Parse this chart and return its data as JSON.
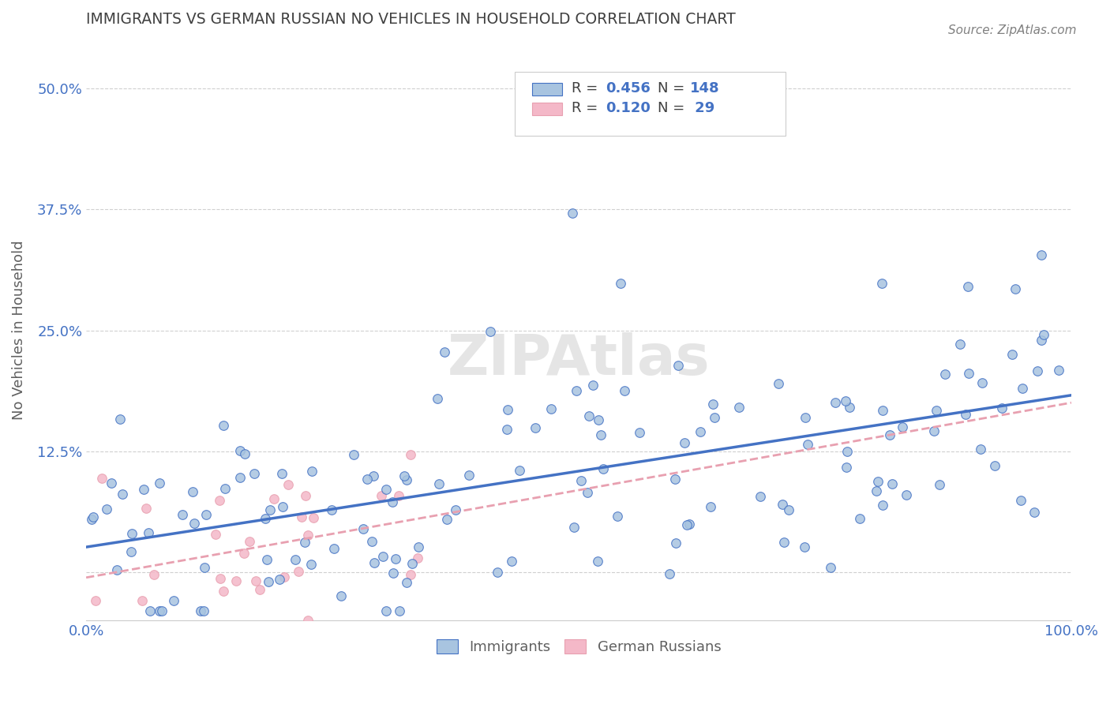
{
  "title": "IMMIGRANTS VS GERMAN RUSSIAN NO VEHICLES IN HOUSEHOLD CORRELATION CHART",
  "source": "Source: ZipAtlas.com",
  "ylabel": "No Vehicles in Household",
  "xlabel": "",
  "xlim": [
    0.0,
    1.0
  ],
  "ylim": [
    -0.05,
    0.55
  ],
  "yticks": [
    0.0,
    0.125,
    0.25,
    0.375,
    0.5
  ],
  "ytick_labels": [
    "",
    "12.5%",
    "25.0%",
    "37.5%",
    "50.0%"
  ],
  "xtick_labels": [
    "0.0%",
    "",
    "",
    "",
    "",
    "100.0%"
  ],
  "legend_r1": "R = 0.456",
  "legend_n1": "N = 148",
  "legend_r2": "R = 0.120",
  "legend_n2": "N =  29",
  "legend1_label": "Immigrants",
  "legend2_label": "German Russians",
  "color_immigrants": "#a8c4e0",
  "color_german": "#f4b8c8",
  "color_line1": "#4472c4",
  "color_line2": "#e8a0b0",
  "watermark": "ZIPAtlas",
  "background_color": "#ffffff",
  "grid_color": "#d0d0d0",
  "title_color": "#404040",
  "axis_label_color": "#4472c4",
  "R1": 0.456,
  "N1": 148,
  "R2": 0.12,
  "N2": 29
}
